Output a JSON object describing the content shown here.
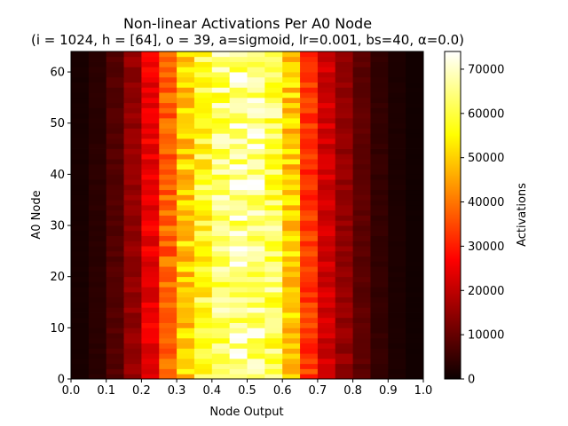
{
  "chart_data": {
    "type": "heatmap",
    "title": "Non-linear Activations Per A0 Node",
    "subtitle": "(i = 1024, h = [64], o = 39, a=sigmoid, lr=0.001, bs=40, α=0.0)",
    "xlabel": "Node Output",
    "ylabel": "A0 Node",
    "xlim": [
      0.0,
      1.0
    ],
    "ylim": [
      0,
      64
    ],
    "x_bins": 20,
    "y_bins": 64,
    "xticks": [
      "0.0",
      "0.1",
      "0.2",
      "0.3",
      "0.4",
      "0.5",
      "0.6",
      "0.7",
      "0.8",
      "0.9",
      "1.0"
    ],
    "yticks": [
      "0",
      "10",
      "20",
      "30",
      "40",
      "50",
      "60"
    ],
    "colormap": "hot",
    "colorbar": {
      "label": "Activations",
      "min": 0,
      "max": 74000,
      "ticks": [
        "0",
        "10000",
        "20000",
        "30000",
        "40000",
        "50000",
        "60000",
        "70000"
      ]
    },
    "column_mean_activations": [
      1500,
      3500,
      8000,
      15000,
      25000,
      38000,
      50000,
      58000,
      63000,
      66000,
      66000,
      62000,
      50000,
      33000,
      22000,
      15000,
      9000,
      4500,
      2000,
      800
    ],
    "grid": false
  }
}
